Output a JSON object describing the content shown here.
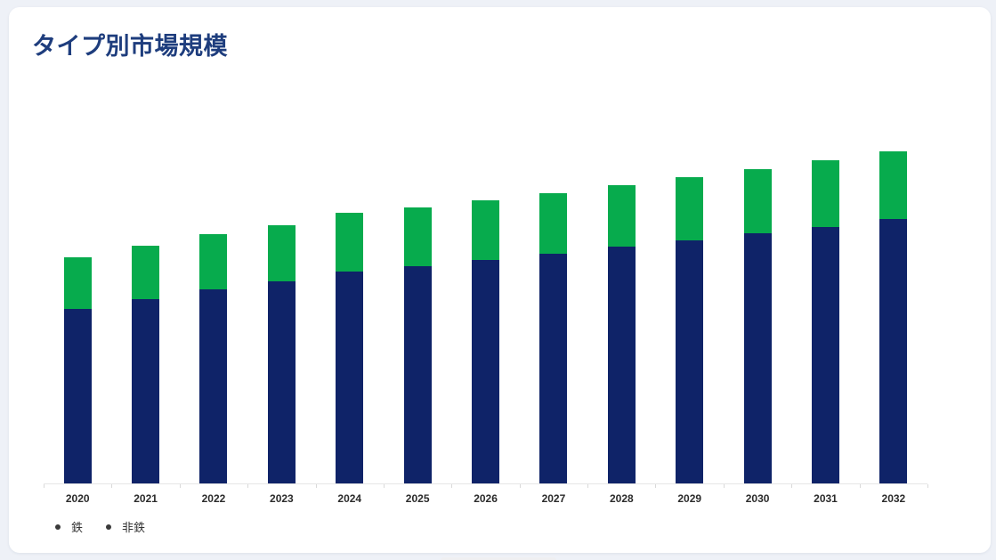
{
  "page": {
    "background_color": "#eef1f7"
  },
  "card": {
    "title": "タイプ別市場規模",
    "title_color": "#1e3d7d"
  },
  "chart_data": {
    "type": "bar",
    "stacked": true,
    "title": "タイプ別市場規模",
    "categories": [
      "2020",
      "2021",
      "2022",
      "2023",
      "2024",
      "2025",
      "2026",
      "2027",
      "2028",
      "2029",
      "2030",
      "2031",
      "2032"
    ],
    "series": [
      {
        "name": "鉄",
        "color": "#0f2368",
        "values": [
          196,
          207,
          218,
          227,
          238,
          244,
          251,
          258,
          266,
          273,
          281,
          288,
          297
        ]
      },
      {
        "name": "非鉄",
        "color": "#07ab4d",
        "values": [
          58,
          60,
          62,
          63,
          66,
          66,
          67,
          68,
          69,
          71,
          72,
          75,
          76
        ]
      }
    ],
    "ylim": [
      0,
      424
    ],
    "y_axis_visible": false,
    "grid": false,
    "legend_position": "bottom-left",
    "legend_marker_color": "#3a3a3a",
    "x_tick_label_color": "#2b2b2b",
    "axis_line_color": "#e6e6e6"
  }
}
